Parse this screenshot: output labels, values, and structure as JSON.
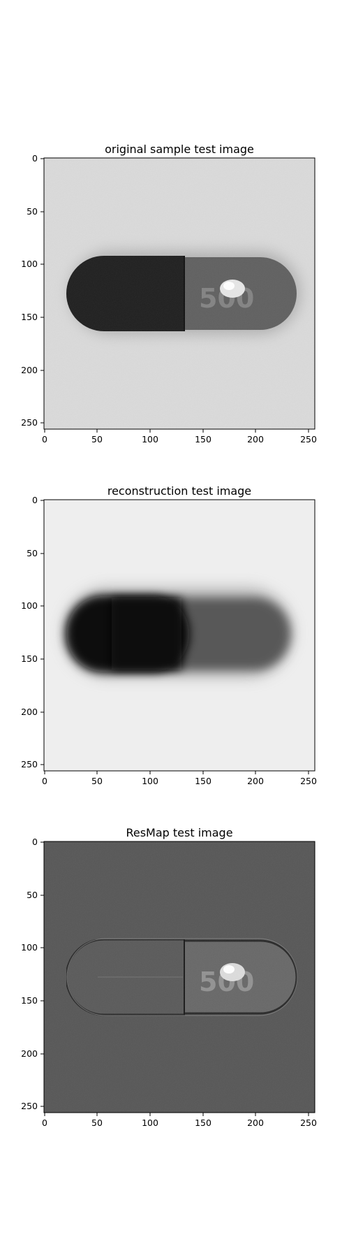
{
  "panels": [
    {
      "title": "original sample test image",
      "x_ticks": [
        "0",
        "50",
        "100",
        "150",
        "200",
        "250"
      ],
      "y_ticks": [
        "0",
        "50",
        "100",
        "150",
        "200",
        "250"
      ],
      "image": {
        "description_colormap": "gray",
        "background_gray": "#d9d9d9",
        "left_cap_gray": "#1e1e1e",
        "right_cap_gray": "#5f5f5f",
        "imprint_text": "500"
      }
    },
    {
      "title": "reconstruction test image",
      "x_ticks": [
        "0",
        "50",
        "100",
        "150",
        "200",
        "250"
      ],
      "y_ticks": [
        "0",
        "50",
        "100",
        "150",
        "200",
        "250"
      ],
      "image": {
        "description_colormap": "gray",
        "background_gray": "#ececec",
        "left_cap_gray": "#101010",
        "right_cap_gray": "#555555",
        "imprint_text": ""
      }
    },
    {
      "title": "ResMap test image",
      "x_ticks": [
        "0",
        "50",
        "100",
        "150",
        "200",
        "250"
      ],
      "y_ticks": [
        "0",
        "50",
        "100",
        "150",
        "200",
        "250"
      ],
      "image": {
        "description_colormap": "gray",
        "background_gray": "#555555",
        "left_cap_gray": "#5b5b5b",
        "right_cap_gray": "#6a6a6a",
        "imprint_text": "500"
      }
    }
  ]
}
